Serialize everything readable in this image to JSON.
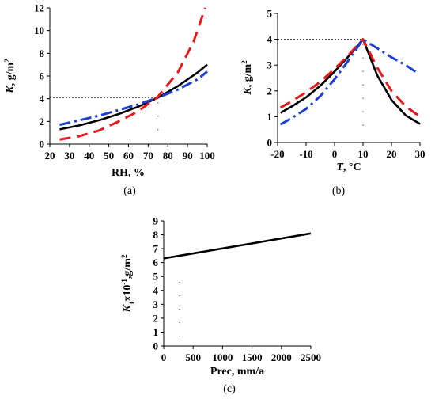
{
  "chart_data": [
    {
      "panel": "(a)",
      "type": "line",
      "xlabel": "RH, %",
      "ylabel_main": "K",
      "ylabel_unit": ", g/m",
      "ylabel_sup": "2",
      "xlim": [
        20,
        100
      ],
      "ylim": [
        0,
        12
      ],
      "xticks": [
        20,
        30,
        40,
        50,
        60,
        70,
        80,
        90,
        100
      ],
      "yticks": [
        0,
        2,
        4,
        6,
        8,
        10,
        12
      ],
      "series": [
        {
          "style": "black-solid",
          "color": "#000000",
          "x": [
            25,
            35,
            45,
            55,
            65,
            75,
            85,
            95,
            100
          ],
          "y": [
            1.3,
            1.65,
            2.1,
            2.65,
            3.3,
            4.1,
            5.1,
            6.3,
            7.0
          ]
        },
        {
          "style": "blue-dashdot",
          "color": "#1f3fd0",
          "x": [
            25,
            35,
            45,
            55,
            65,
            75,
            85,
            95,
            100
          ],
          "y": [
            1.7,
            2.1,
            2.5,
            3.0,
            3.5,
            4.1,
            4.8,
            5.7,
            6.4
          ]
        },
        {
          "style": "red-dashed",
          "color": "#e8191c",
          "x": [
            25,
            35,
            45,
            55,
            65,
            75,
            85,
            93,
            99
          ],
          "y": [
            0.4,
            0.7,
            1.2,
            2.0,
            2.9,
            4.2,
            6.3,
            9.0,
            12.0
          ]
        }
      ],
      "reference": {
        "x": 75,
        "y": 4.1
      }
    },
    {
      "panel": "(b)",
      "type": "line",
      "xlabel_main": "T",
      "xlabel_unit": ", °C",
      "ylabel_main": "K",
      "ylabel_unit": ", g/m",
      "ylabel_sup": "2",
      "xlim": [
        -20,
        30
      ],
      "ylim": [
        0,
        5
      ],
      "xticks": [
        -20,
        -10,
        0,
        10,
        20,
        30
      ],
      "yticks": [
        0,
        1,
        2,
        3,
        4,
        5
      ],
      "series": [
        {
          "style": "black-solid",
          "color": "#000000",
          "x": [
            -19,
            -15,
            -10,
            -5,
            0,
            5,
            10,
            15,
            20,
            25,
            30
          ],
          "y": [
            1.15,
            1.4,
            1.75,
            2.2,
            2.75,
            3.35,
            4.0,
            2.6,
            1.65,
            1.05,
            0.72
          ]
        },
        {
          "style": "red-dashed",
          "color": "#e8191c",
          "x": [
            -19,
            -15,
            -10,
            -5,
            0,
            5,
            10,
            15,
            20,
            25,
            30
          ],
          "y": [
            1.35,
            1.6,
            1.95,
            2.35,
            2.85,
            3.4,
            4.0,
            2.9,
            2.0,
            1.4,
            1.0
          ]
        },
        {
          "style": "blue-dashdot",
          "color": "#1f3fd0",
          "x": [
            -19,
            -15,
            -10,
            -5,
            0,
            5,
            10,
            15,
            20,
            25,
            29
          ],
          "y": [
            0.7,
            0.95,
            1.3,
            1.8,
            2.45,
            3.2,
            4.0,
            3.65,
            3.3,
            3.0,
            2.7
          ]
        }
      ],
      "reference": {
        "x": 10,
        "y": 4.0
      }
    },
    {
      "panel": "(c)",
      "type": "line",
      "xlabel": "Prec, mm/a",
      "ylabel_main": "K",
      "ylabel_sub": "1",
      "ylabel_unit": "x10",
      "ylabel_exp": "-1",
      "ylabel_unit2": ",g/m",
      "ylabel_sup": "2",
      "xlim": [
        0,
        2500
      ],
      "ylim": [
        0,
        9
      ],
      "xticks": [
        0,
        500,
        1000,
        1500,
        2000,
        2500
      ],
      "yticks": [
        0,
        1,
        2,
        3,
        4,
        5,
        6,
        7,
        8,
        9
      ],
      "series": [
        {
          "style": "black-solid",
          "color": "#000000",
          "x": [
            0,
            2500
          ],
          "y": [
            6.3,
            8.1
          ]
        }
      ],
      "reference": {
        "x": 270
      }
    }
  ]
}
